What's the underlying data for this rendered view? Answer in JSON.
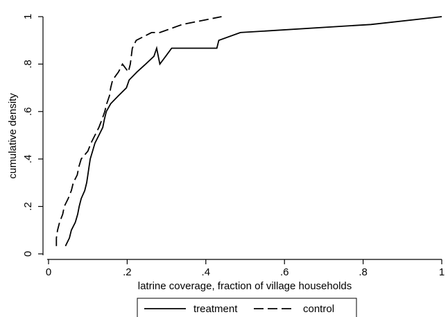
{
  "chart_data": {
    "type": "line",
    "title": "",
    "xlabel": "latrine coverage, fraction of village households",
    "ylabel": "cumulative density",
    "xlim": [
      0,
      1
    ],
    "ylim": [
      0,
      1
    ],
    "x_ticks": [
      0,
      0.2,
      0.4,
      0.6,
      0.8,
      1
    ],
    "x_tick_labels": [
      "0",
      ".2",
      ".4",
      ".6",
      ".8",
      "1"
    ],
    "y_ticks": [
      0,
      0.2,
      0.4,
      0.6,
      0.8,
      1
    ],
    "y_tick_labels": [
      "0",
      ".2",
      ".4",
      ".6",
      ".8",
      "1"
    ],
    "grid": false,
    "legend_position": "bottom",
    "series": [
      {
        "name": "treatment",
        "style": "solid",
        "color": "#000000",
        "x": [
          0.043,
          0.053,
          0.058,
          0.068,
          0.074,
          0.078,
          0.083,
          0.092,
          0.097,
          0.1,
          0.103,
          0.106,
          0.112,
          0.118,
          0.128,
          0.138,
          0.142,
          0.147,
          0.158,
          0.178,
          0.198,
          0.205,
          0.225,
          0.247,
          0.268,
          0.275,
          0.283,
          0.298,
          0.313,
          0.342,
          0.428,
          0.433,
          0.488,
          0.82,
          1.0
        ],
        "y": [
          0.033,
          0.067,
          0.1,
          0.133,
          0.167,
          0.2,
          0.233,
          0.267,
          0.3,
          0.333,
          0.367,
          0.4,
          0.433,
          0.467,
          0.5,
          0.533,
          0.567,
          0.6,
          0.633,
          0.667,
          0.7,
          0.733,
          0.767,
          0.8,
          0.833,
          0.867,
          0.8,
          0.833,
          0.867,
          0.867,
          0.867,
          0.9,
          0.933,
          0.967,
          1.0
        ]
      },
      {
        "name": "control",
        "style": "dashed",
        "color": "#000000",
        "x": [
          0.02,
          0.02,
          0.023,
          0.028,
          0.036,
          0.04,
          0.05,
          0.058,
          0.063,
          0.073,
          0.077,
          0.083,
          0.1,
          0.108,
          0.118,
          0.128,
          0.136,
          0.143,
          0.148,
          0.155,
          0.158,
          0.163,
          0.178,
          0.188,
          0.203,
          0.208,
          0.213,
          0.223,
          0.262,
          0.283,
          0.34,
          0.44
        ],
        "y": [
          0.033,
          0.067,
          0.1,
          0.133,
          0.167,
          0.2,
          0.233,
          0.267,
          0.3,
          0.333,
          0.367,
          0.4,
          0.433,
          0.467,
          0.5,
          0.533,
          0.567,
          0.6,
          0.633,
          0.667,
          0.7,
          0.733,
          0.767,
          0.8,
          0.767,
          0.8,
          0.867,
          0.9,
          0.933,
          0.933,
          0.967,
          1.0
        ]
      }
    ]
  }
}
